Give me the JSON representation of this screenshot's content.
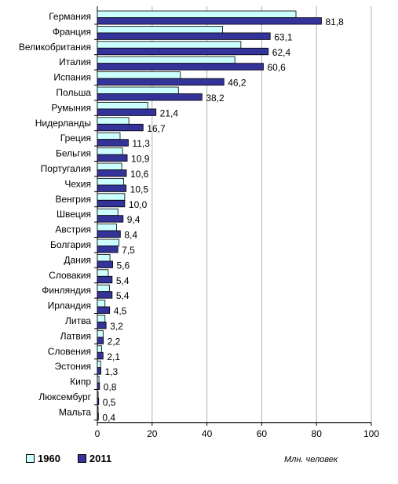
{
  "chart_data": {
    "type": "bar",
    "orientation": "horizontal",
    "categories": [
      "Германия",
      "Франция",
      "Великобритания",
      "Италия",
      "Испания",
      "Польша",
      "Румыния",
      "Нидерланды",
      "Греция",
      "Бельгия",
      "Португалия",
      "Чехия",
      "Венгрия",
      "Швеция",
      "Австрия",
      "Болгария",
      "Дания",
      "Словакия",
      "Финляндия",
      "Ирландия",
      "Литва",
      "Латвия",
      "Словения",
      "Эстония",
      "Кипр",
      "Люксембург",
      "Мальта"
    ],
    "series": [
      {
        "name": "1960",
        "color": "#ccffff",
        "values": [
          72.5,
          45.7,
          52.4,
          50.2,
          30.3,
          29.6,
          18.4,
          11.5,
          8.3,
          9.2,
          8.9,
          9.6,
          10.0,
          7.5,
          7.0,
          7.9,
          4.6,
          4.0,
          4.4,
          2.8,
          2.8,
          2.1,
          1.6,
          1.2,
          0.6,
          0.3,
          0.3
        ]
      },
      {
        "name": "2011",
        "color": "#333399",
        "values": [
          81.8,
          63.1,
          62.4,
          60.6,
          46.2,
          38.2,
          21.4,
          16.7,
          11.3,
          10.9,
          10.6,
          10.5,
          10.0,
          9.4,
          8.4,
          7.5,
          5.6,
          5.4,
          5.4,
          4.5,
          3.2,
          2.2,
          2.1,
          1.3,
          0.8,
          0.5,
          0.4
        ]
      }
    ],
    "data_labels": [
      "81,8",
      "63,1",
      "62,4",
      "60,6",
      "46,2",
      "38,2",
      "21,4",
      "16,7",
      "11,3",
      "10,9",
      "10,6",
      "10,5",
      "10,0",
      "9,4",
      "8,4",
      "7,5",
      "5,6",
      "5,4",
      "5,4",
      "4,5",
      "3,2",
      "2,2",
      "2,1",
      "1,3",
      "0,8",
      "0,5",
      "0,4"
    ],
    "xlim": [
      0,
      100
    ],
    "x_ticks": [
      0,
      20,
      40,
      60,
      80,
      100
    ],
    "x_tick_labels": [
      "0",
      "20",
      "40",
      "60",
      "80",
      "100"
    ],
    "grid": "vertical",
    "legend_placement": "bottom-left",
    "units_label": "Млн. человек"
  }
}
